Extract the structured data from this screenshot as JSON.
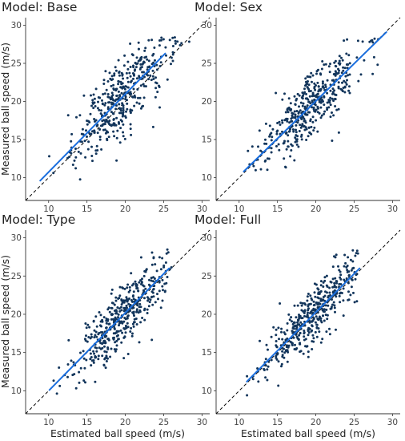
{
  "chart_data": {
    "type": "scatter",
    "xlabel": "Estimated ball speed (m/s)",
    "ylabel": "Measured ball speed (m/s)",
    "xlim": [
      7,
      31
    ],
    "ylim": [
      7,
      31
    ],
    "xticks": [
      10,
      15,
      20,
      25,
      30
    ],
    "yticks": [
      10,
      15,
      20,
      25,
      30
    ],
    "reference_line": {
      "slope": 1,
      "intercept": 0,
      "style": "dashed",
      "color": "#000000"
    },
    "point_color": "#12355b",
    "fit_color": "#1a6ede",
    "grid": false,
    "panels": [
      {
        "title": "Model: Base",
        "fit_x": [
          8.9,
          25.2
        ],
        "fit_y": [
          9.6,
          26.3
        ],
        "x_range": [
          9,
          28.5
        ],
        "spread": 2.3
      },
      {
        "title": "Model: Sex",
        "fit_x": [
          10.6,
          29.2
        ],
        "fit_y": [
          10.8,
          29.1
        ],
        "x_range": [
          10,
          29
        ],
        "spread": 2.2
      },
      {
        "title": "Model: Type",
        "fit_x": [
          10.1,
          25.7
        ],
        "fit_y": [
          10.1,
          26.0
        ],
        "x_range": [
          10,
          26
        ],
        "spread": 2.0
      },
      {
        "title": "Model: Full",
        "fit_x": [
          11.0,
          25.7
        ],
        "fit_y": [
          11.2,
          26.0
        ],
        "x_range": [
          11,
          25.5
        ],
        "spread": 1.8
      }
    ]
  }
}
